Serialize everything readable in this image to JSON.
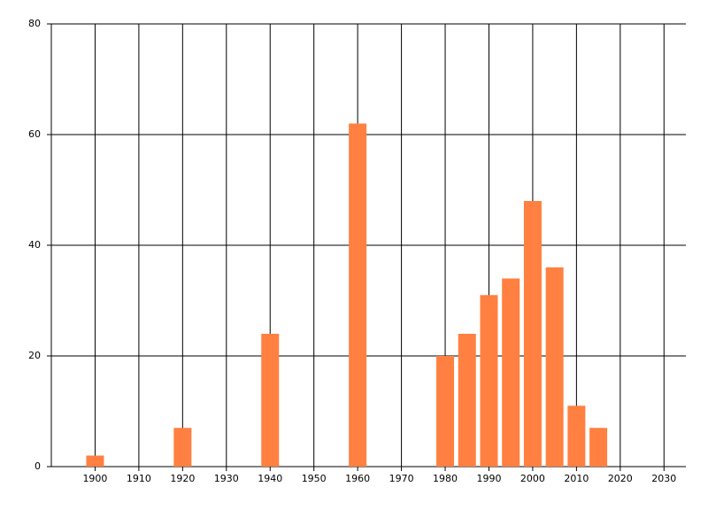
{
  "chart_data": {
    "type": "bar",
    "x": [
      1900,
      1920,
      1940,
      1960,
      1980,
      1985,
      1990,
      1995,
      2000,
      2005,
      2010,
      2015
    ],
    "values": [
      2,
      7,
      24,
      62,
      20,
      24,
      31,
      34,
      48,
      36,
      11,
      7
    ],
    "color": "#ff8040",
    "xlim": [
      1890,
      2035
    ],
    "xticks": [
      1900,
      1910,
      1920,
      1930,
      1940,
      1950,
      1960,
      1970,
      1980,
      1990,
      2000,
      2010,
      2020,
      2030
    ],
    "ylim": [
      0,
      80
    ],
    "yticks": [
      0,
      20,
      40,
      60,
      80
    ],
    "grid": true
  }
}
